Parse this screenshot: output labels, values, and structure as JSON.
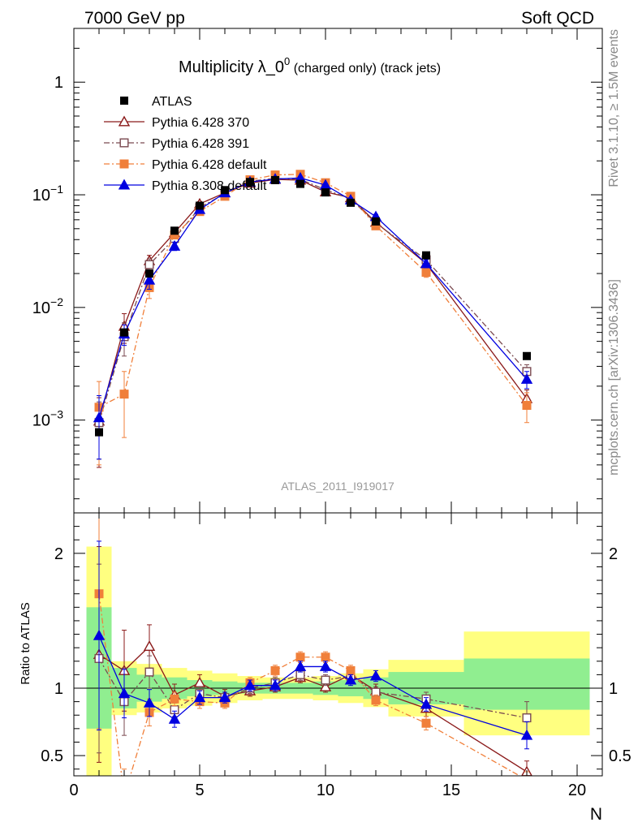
{
  "header": {
    "left": "7000 GeV pp",
    "right": "Soft QCD"
  },
  "side": {
    "top": "Rivet 3.1.10, ≥ 1.5M events",
    "bottom": "mcplots.cern.ch [arXiv:1306.3436]"
  },
  "chart_data": {
    "type": "line",
    "title_main": "Multiplicity λ_0",
    "title_sup": "0",
    "title_sub": " (charged only) (track jets)",
    "analysis_label": "ATLAS_2011_I919017",
    "xlabel": "N",
    "xlim": [
      0,
      21
    ],
    "x_ticks": [
      "0",
      "5",
      "10",
      "15",
      "20"
    ],
    "main_ylim": [
      0.00015,
      3
    ],
    "main_yscale": "log",
    "main_y_ticks": [
      {
        "base": "1",
        "exp": ""
      },
      {
        "base": "10",
        "exp": "−1"
      },
      {
        "base": "10",
        "exp": "−2"
      },
      {
        "base": "10",
        "exp": "−3"
      }
    ],
    "ratio_ylabel": "Ratio to ATLAS",
    "ratio_ylim": [
      0.35,
      2.3
    ],
    "ratio_y_ticks": [
      "2",
      "1",
      "0.5"
    ],
    "x": [
      1,
      2,
      3,
      4,
      5,
      6,
      7,
      8,
      9,
      10,
      11,
      12,
      14,
      18
    ],
    "data": {
      "name": "ATLAS",
      "values": [
        0.00078,
        0.006,
        0.02,
        0.048,
        0.08,
        0.11,
        0.13,
        0.135,
        0.125,
        0.105,
        0.085,
        0.058,
        0.029,
        0.0037
      ],
      "band_edges": [
        0.5,
        1.5,
        2.5,
        3.5,
        4.5,
        5.5,
        6.5,
        7.5,
        8.5,
        9.5,
        10.5,
        11.5,
        12.5,
        15.5,
        20.5
      ],
      "stat_band": [
        [
          0.7,
          1.6
        ],
        [
          0.85,
          1.15
        ],
        [
          0.9,
          1.1
        ],
        [
          0.92,
          1.08
        ],
        [
          0.94,
          1.06
        ],
        [
          0.95,
          1.05
        ],
        [
          0.96,
          1.04
        ],
        [
          0.96,
          1.04
        ],
        [
          0.96,
          1.04
        ],
        [
          0.95,
          1.05
        ],
        [
          0.94,
          1.06
        ],
        [
          0.92,
          1.08
        ],
        [
          0.88,
          1.12
        ],
        [
          0.84,
          1.22
        ]
      ],
      "total_band": [
        [
          0.35,
          2.05
        ],
        [
          0.8,
          1.2
        ],
        [
          0.82,
          1.18
        ],
        [
          0.85,
          1.15
        ],
        [
          0.87,
          1.13
        ],
        [
          0.89,
          1.11
        ],
        [
          0.91,
          1.09
        ],
        [
          0.92,
          1.08
        ],
        [
          0.92,
          1.08
        ],
        [
          0.91,
          1.09
        ],
        [
          0.89,
          1.11
        ],
        [
          0.86,
          1.14
        ],
        [
          0.79,
          1.21
        ],
        [
          0.65,
          1.42
        ]
      ]
    },
    "series": [
      {
        "name": "Pythia 6.428 370",
        "color": "#8b1a1a",
        "dash": "",
        "marker": "triangle-open",
        "values": [
          0.00098,
          0.0068,
          0.026,
          0.046,
          0.083,
          0.104,
          0.127,
          0.137,
          0.135,
          0.106,
          0.094,
          0.057,
          0.0245,
          0.00155
        ],
        "ratio": [
          1.25,
          1.13,
          1.31,
          0.95,
          1.04,
          0.94,
          0.98,
          1.01,
          1.08,
          1.01,
          1.1,
          0.98,
          0.85,
          0.38
        ],
        "ratio_err": [
          0.8,
          0.3,
          0.16,
          0.08,
          0.06,
          0.05,
          0.04,
          0.04,
          0.04,
          0.04,
          0.05,
          0.05,
          0.06,
          0.08
        ],
        "main_err": [
          0.0006,
          0.002,
          0.003,
          0.003,
          0.004,
          0.004,
          0.004,
          0.004,
          0.004,
          0.004,
          0.004,
          0.003,
          0.002,
          0.0003
        ]
      },
      {
        "name": "Pythia 6.428 391",
        "color": "#7a4a50",
        "dash": "7,3,2,3",
        "marker": "square-open",
        "values": [
          0.00095,
          0.0055,
          0.024,
          0.041,
          0.077,
          0.102,
          0.132,
          0.14,
          0.137,
          0.111,
          0.092,
          0.056,
          0.0265,
          0.0027
        ],
        "ratio": [
          1.22,
          0.9,
          1.12,
          0.84,
          0.96,
          0.93,
          1.0,
          1.04,
          1.1,
          1.06,
          1.09,
          0.97,
          0.92,
          0.78
        ],
        "ratio_err": [
          0.7,
          0.25,
          0.12,
          0.05,
          0.05,
          0.04,
          0.04,
          0.04,
          0.04,
          0.04,
          0.04,
          0.04,
          0.05,
          0.12
        ],
        "main_err": [
          0.0005,
          0.0018,
          0.003,
          0.003,
          0.004,
          0.004,
          0.004,
          0.004,
          0.004,
          0.004,
          0.004,
          0.003,
          0.002,
          0.0004
        ]
      },
      {
        "name": "Pythia 6.428 default",
        "color": "#f07f3a",
        "dash": "7,3,2,3",
        "marker": "square-filled",
        "values": [
          0.0013,
          0.0017,
          0.015,
          0.044,
          0.071,
          0.097,
          0.136,
          0.15,
          0.152,
          0.128,
          0.097,
          0.053,
          0.0205,
          0.00135
        ],
        "ratio": [
          1.7,
          0.2,
          0.82,
          0.92,
          0.9,
          0.89,
          1.04,
          1.13,
          1.23,
          1.23,
          1.13,
          0.91,
          0.74,
          0.32
        ],
        "ratio_err": [
          1.0,
          0.2,
          0.1,
          0.05,
          0.05,
          0.04,
          0.04,
          0.04,
          0.04,
          0.04,
          0.04,
          0.04,
          0.05,
          0.06
        ],
        "main_err": [
          0.0009,
          0.001,
          0.003,
          0.003,
          0.004,
          0.004,
          0.004,
          0.004,
          0.004,
          0.004,
          0.004,
          0.003,
          0.002,
          0.0004
        ]
      },
      {
        "name": "Pythia 8.308 default",
        "color": "#0000e0",
        "dash": "",
        "marker": "triangle-filled",
        "values": [
          0.00105,
          0.0058,
          0.0175,
          0.035,
          0.074,
          0.104,
          0.13,
          0.138,
          0.141,
          0.122,
          0.09,
          0.064,
          0.0245,
          0.0023
        ],
        "ratio": [
          1.39,
          0.96,
          0.89,
          0.77,
          0.93,
          0.93,
          1.02,
          1.02,
          1.16,
          1.16,
          1.06,
          1.09,
          0.88,
          0.65
        ],
        "ratio_err": [
          0.7,
          0.18,
          0.1,
          0.06,
          0.05,
          0.04,
          0.04,
          0.04,
          0.04,
          0.04,
          0.04,
          0.04,
          0.05,
          0.1
        ],
        "main_err": [
          0.0006,
          0.0012,
          0.003,
          0.003,
          0.004,
          0.004,
          0.004,
          0.004,
          0.004,
          0.004,
          0.004,
          0.003,
          0.002,
          0.0004
        ]
      }
    ]
  }
}
